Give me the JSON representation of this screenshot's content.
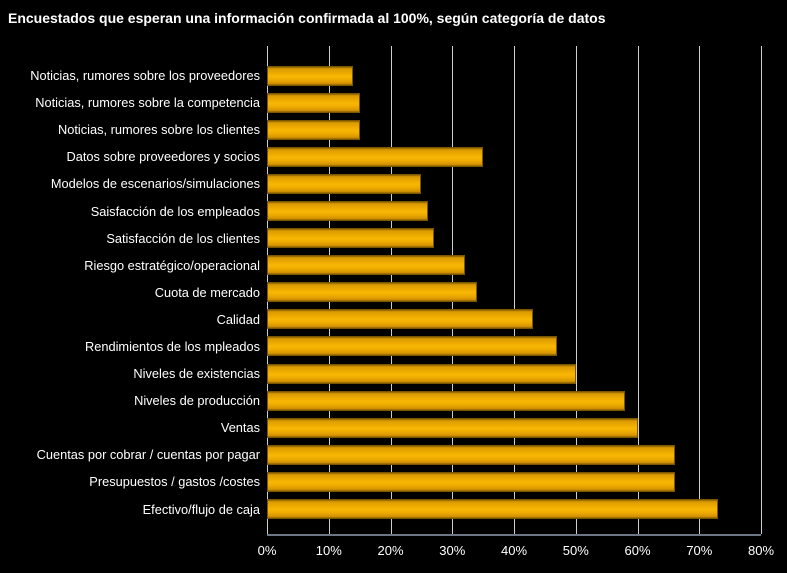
{
  "title": "Encuestados que esperan una información confirmada al 100%, según categoría de datos",
  "chart_data": {
    "type": "bar",
    "orientation": "horizontal",
    "title": "Encuestados que esperan una información confirmada al 100%, según categoría de datos",
    "categories": [
      "Noticias, rumores sobre los proveedores",
      "Noticias, rumores sobre la competencia",
      "Noticias, rumores sobre los clientes",
      "Datos sobre proveedores y socios",
      "Modelos de escenarios/simulaciones",
      "Saisfacción de los empleados",
      "Satisfacción de los clientes",
      "Riesgo estratégico/operacional",
      "Cuota de mercado",
      "Calidad",
      "Rendimientos de los mpleados",
      "Niveles de existencias",
      "Niveles de producción",
      "Ventas",
      "Cuentas por cobrar / cuentas por pagar",
      "Presupuestos / gastos /costes",
      "Efectivo/flujo de caja"
    ],
    "values": [
      14,
      15,
      15,
      35,
      25,
      26,
      27,
      32,
      34,
      43,
      47,
      50,
      58,
      60,
      66,
      66,
      73
    ],
    "value_unit": "%",
    "xlabel": "",
    "ylabel": "",
    "xlim": [
      0,
      80
    ],
    "x_tick_values": [
      0,
      10,
      20,
      30,
      40,
      50,
      60,
      70,
      80
    ],
    "x_tick_labels": [
      "0%",
      "10%",
      "20%",
      "30%",
      "40%",
      "50%",
      "60%",
      "70%",
      "80%"
    ],
    "grid": true,
    "legend": false,
    "colors": {
      "background": "#000000",
      "bar_fill": "#EDAA00",
      "bar_highlight": "#F8B705",
      "bar_edge": "#7A5600",
      "gridline": "#CDCED2",
      "axis_line": "#6C7787",
      "text": "#FFFFFF"
    }
  }
}
